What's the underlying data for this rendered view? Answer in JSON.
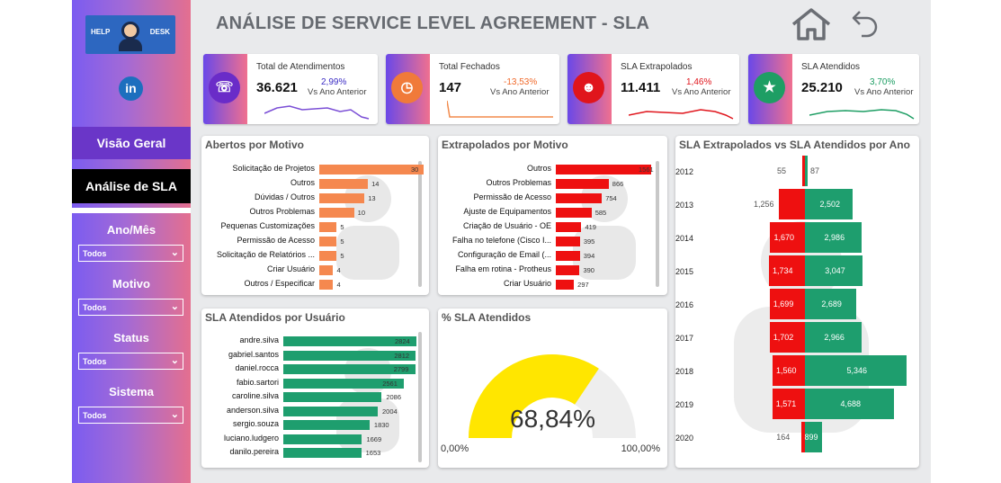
{
  "logo": {
    "left": "HELP",
    "right": "DESK"
  },
  "linkedin_label": "in",
  "nav": {
    "overview": "Visão Geral",
    "sla": "Análise de SLA"
  },
  "slicers": [
    {
      "label": "Ano/Mês",
      "value": "Todos"
    },
    {
      "label": "Motivo",
      "value": "Todos"
    },
    {
      "label": "Status",
      "value": "Todos"
    },
    {
      "label": "Sistema",
      "value": "Todos"
    }
  ],
  "title": "ANÁLISE DE SERVICE LEVEL AGREEMENT - SLA",
  "kpis": [
    {
      "label": "Total de Atendimentos",
      "value": "36.621",
      "pct": "2,99%",
      "sub": "Vs Ano Anterior",
      "pct_color": "#3b2cc4",
      "line_color": "#7b4fd6"
    },
    {
      "label": "Total Fechados",
      "value": "147",
      "pct": "-13,53%",
      "sub": "Vs Ano Anterior",
      "pct_color": "#f0692a",
      "line_color": "#f28a4b"
    },
    {
      "label": "SLA Extrapolados",
      "value": "11.411",
      "pct": "1,46%",
      "sub": "Vs Ano Anterior",
      "pct_color": "#e0151c",
      "line_color": "#e0151c"
    },
    {
      "label": "SLA Atendidos",
      "value": "25.210",
      "pct": "3,70%",
      "sub": "Vs Ano Anterior",
      "pct_color": "#1e9e64",
      "line_color": "#1e9e64"
    }
  ],
  "abertos": {
    "title": "Abertos por Motivo",
    "color": "#f5884f",
    "rows": [
      {
        "cat": "Solicitação de Projetos",
        "value": 30
      },
      {
        "cat": "Outros",
        "value": 14
      },
      {
        "cat": "Dúvidas / Outros",
        "value": 13
      },
      {
        "cat": "Outros Problemas",
        "value": 10
      },
      {
        "cat": "Pequenas Customizações",
        "value": 5
      },
      {
        "cat": "Permissão de Acesso",
        "value": 5
      },
      {
        "cat": "Solicitação de Relatórios ...",
        "value": 5
      },
      {
        "cat": "Criar Usuário",
        "value": 4
      },
      {
        "cat": "Outros / Especificar",
        "value": 4
      }
    ]
  },
  "extrapolados": {
    "title": "Extrapolados por Motivo",
    "color": "#ee1010",
    "rows": [
      {
        "cat": "Outros",
        "value": 1561
      },
      {
        "cat": "Outros Problemas",
        "value": 866
      },
      {
        "cat": "Permissão de Acesso",
        "value": 754
      },
      {
        "cat": "Ajuste de Equipamentos",
        "value": 585
      },
      {
        "cat": "Criação de Usuário - OE",
        "value": 419
      },
      {
        "cat": "Falha no telefone (Cisco I...",
        "value": 395
      },
      {
        "cat": "Configuração de Email (...",
        "value": 394
      },
      {
        "cat": "Falha em rotina - Protheus",
        "value": 390
      },
      {
        "cat": "Criar Usuário",
        "value": 297
      }
    ]
  },
  "atendidos_usuario": {
    "title": "SLA Atendidos por Usuário",
    "color": "#1e9e6e",
    "rows": [
      {
        "cat": "andre.silva",
        "value": 2824
      },
      {
        "cat": "gabriel.santos",
        "value": 2812
      },
      {
        "cat": "daniel.rocca",
        "value": 2799
      },
      {
        "cat": "fabio.sartori",
        "value": 2561
      },
      {
        "cat": "caroline.silva",
        "value": 2086
      },
      {
        "cat": "anderson.silva",
        "value": 2004
      },
      {
        "cat": "sergio.souza",
        "value": 1830
      },
      {
        "cat": "luciano.ludgero",
        "value": 1669
      },
      {
        "cat": "danilo.pereira",
        "value": 1653
      }
    ]
  },
  "gauge": {
    "title": "% SLA Atendidos",
    "value_text": "68,84%",
    "value": 0.6884,
    "min": "0,00%",
    "max": "100,00%",
    "color": "#ffe600"
  },
  "yearly": {
    "title": "SLA Extrapolados vs SLA Atendidos por Ano",
    "rows": [
      {
        "year": "2012",
        "extra": 55,
        "aten": 87
      },
      {
        "year": "2013",
        "extra": 1256,
        "aten": 2502
      },
      {
        "year": "2014",
        "extra": 1670,
        "aten": 2986
      },
      {
        "year": "2015",
        "extra": 1734,
        "aten": 3047
      },
      {
        "year": "2016",
        "extra": 1699,
        "aten": 2689
      },
      {
        "year": "2017",
        "extra": 1702,
        "aten": 2966
      },
      {
        "year": "2018",
        "extra": 1560,
        "aten": 5346
      },
      {
        "year": "2019",
        "extra": 1571,
        "aten": 4688
      },
      {
        "year": "2020",
        "extra": 164,
        "aten": 899
      }
    ],
    "extra_color": "#ee1010",
    "aten_color": "#1e9e6e"
  }
}
